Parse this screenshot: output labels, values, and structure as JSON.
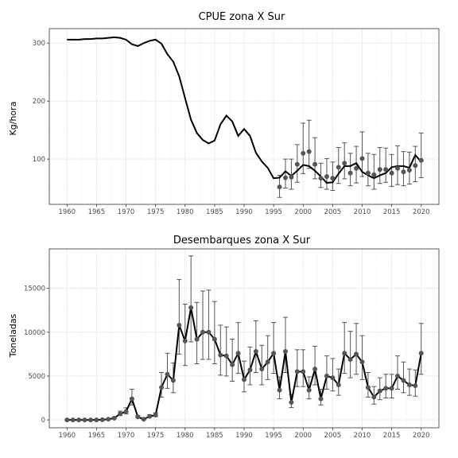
{
  "chart_data": [
    {
      "type": "line",
      "title": "CPUE zona X Sur",
      "xlabel": "",
      "ylabel": "Kg/hora",
      "xlim": [
        1957,
        2023
      ],
      "ylim": [
        22,
        325
      ],
      "x_ticks": [
        1960,
        1965,
        1970,
        1975,
        1980,
        1985,
        1990,
        1995,
        2000,
        2005,
        2010,
        2015,
        2020
      ],
      "y_ticks": [
        100,
        200,
        300
      ],
      "grid": true,
      "model_line": {
        "x": [
          1960,
          1961,
          1962,
          1963,
          1964,
          1965,
          1966,
          1967,
          1968,
          1969,
          1970,
          1971,
          1972,
          1973,
          1974,
          1975,
          1976,
          1977,
          1978,
          1979,
          1980,
          1981,
          1982,
          1983,
          1984,
          1985,
          1986,
          1987,
          1988,
          1989,
          1990,
          1991,
          1992,
          1993,
          1994,
          1995,
          1996,
          1997,
          1998,
          1999,
          2000,
          2001,
          2002,
          2003,
          2004,
          2005,
          2006,
          2007,
          2008,
          2009,
          2010,
          2011,
          2012,
          2013,
          2014,
          2015,
          2016,
          2017,
          2018,
          2019,
          2020
        ],
        "y": [
          306,
          306,
          306,
          307,
          307,
          308,
          308,
          309,
          310,
          309,
          306,
          298,
          295,
          300,
          304,
          306,
          299,
          281,
          268,
          243,
          205,
          168,
          145,
          133,
          127,
          132,
          160,
          175,
          165,
          140,
          152,
          140,
          111,
          96,
          85,
          67,
          68,
          79,
          71,
          80,
          90,
          88,
          80,
          70,
          59,
          60,
          75,
          88,
          88,
          93,
          78,
          72,
          67,
          72,
          76,
          86,
          88,
          88,
          85,
          107,
          95
        ]
      },
      "observations": {
        "x": [
          1996,
          1997,
          1998,
          1999,
          2000,
          2001,
          2002,
          2003,
          2004,
          2005,
          2006,
          2007,
          2008,
          2009,
          2010,
          2011,
          2012,
          2013,
          2014,
          2015,
          2016,
          2017,
          2018,
          2019,
          2020
        ],
        "y": [
          52,
          68,
          69,
          91,
          110,
          113,
          91,
          67,
          70,
          67,
          86,
          93,
          76,
          84,
          101,
          76,
          73,
          82,
          82,
          76,
          84,
          78,
          81,
          89,
          98
        ],
        "lower": [
          34,
          50,
          48,
          60,
          75,
          84,
          66,
          51,
          48,
          46,
          58,
          66,
          54,
          59,
          70,
          54,
          48,
          58,
          60,
          53,
          56,
          54,
          57,
          61,
          68
        ],
        "upper": [
          72,
          100,
          100,
          125,
          162,
          167,
          137,
          93,
          101,
          95,
          120,
          128,
          110,
          122,
          147,
          110,
          108,
          120,
          119,
          108,
          123,
          113,
          112,
          122,
          145
        ]
      }
    },
    {
      "type": "line",
      "title": "Desembarques zona X Sur",
      "xlabel": "",
      "ylabel": "Toneladas",
      "xlim": [
        1957,
        2023
      ],
      "ylim": [
        -900,
        19500
      ],
      "x_ticks": [
        1960,
        1965,
        1970,
        1975,
        1980,
        1985,
        1990,
        1995,
        2000,
        2005,
        2010,
        2015,
        2020
      ],
      "y_ticks": [
        0,
        5000,
        10000,
        15000
      ],
      "grid": true,
      "model_line": {
        "x": [
          1960,
          1961,
          1962,
          1963,
          1964,
          1965,
          1966,
          1967,
          1968,
          1969,
          1970,
          1971,
          1972,
          1973,
          1974,
          1975,
          1976,
          1977,
          1978,
          1979,
          1980,
          1981,
          1982,
          1983,
          1984,
          1985,
          1986,
          1987,
          1988,
          1989,
          1990,
          1991,
          1992,
          1993,
          1994,
          1995,
          1996,
          1997,
          1998,
          1999,
          2000,
          2001,
          2002,
          2003,
          2004,
          2005,
          2006,
          2007,
          2008,
          2009,
          2010,
          2011,
          2012,
          2013,
          2014,
          2015,
          2016,
          2017,
          2018,
          2019,
          2020
        ],
        "y": [
          0,
          0,
          0,
          0,
          0,
          0,
          20,
          80,
          200,
          700,
          950,
          2400,
          350,
          80,
          400,
          550,
          3700,
          5200,
          4500,
          10800,
          9000,
          12800,
          9200,
          10000,
          10000,
          9200,
          7400,
          7300,
          6300,
          7600,
          4600,
          5700,
          7800,
          5800,
          6600,
          7600,
          3400,
          7800,
          2000,
          5500,
          5500,
          3400,
          5800,
          2400,
          5000,
          4800,
          4000,
          7600,
          6900,
          7500,
          6600,
          3700,
          2600,
          3300,
          3600,
          3600,
          5000,
          4500,
          4000,
          3900,
          7600
        ]
      },
      "observations": {
        "x": [
          1960,
          1961,
          1962,
          1963,
          1964,
          1965,
          1966,
          1967,
          1968,
          1969,
          1970,
          1971,
          1972,
          1973,
          1974,
          1975,
          1976,
          1977,
          1978,
          1979,
          1980,
          1981,
          1982,
          1983,
          1984,
          1985,
          1986,
          1987,
          1988,
          1989,
          1990,
          1991,
          1992,
          1993,
          1994,
          1995,
          1996,
          1997,
          1998,
          1999,
          2000,
          2001,
          2002,
          2003,
          2004,
          2005,
          2006,
          2007,
          2008,
          2009,
          2010,
          2011,
          2012,
          2013,
          2014,
          2015,
          2016,
          2017,
          2018,
          2019,
          2020
        ],
        "y": [
          0,
          0,
          0,
          0,
          0,
          0,
          20,
          80,
          200,
          700,
          950,
          2400,
          350,
          80,
          400,
          550,
          3700,
          5200,
          4500,
          10800,
          9000,
          12800,
          9200,
          10000,
          10000,
          9200,
          7400,
          7300,
          6300,
          7600,
          4600,
          5700,
          7800,
          5800,
          6600,
          7600,
          3400,
          7800,
          2000,
          5500,
          5500,
          3400,
          5800,
          2400,
          5000,
          4800,
          4000,
          7600,
          6900,
          7500,
          6600,
          3700,
          2600,
          3300,
          3600,
          3600,
          5000,
          4500,
          4000,
          3900,
          7600
        ],
        "lower": [
          0,
          0,
          0,
          0,
          0,
          0,
          15,
          55,
          140,
          500,
          680,
          1700,
          250,
          55,
          280,
          390,
          2600,
          3600,
          3100,
          7500,
          6200,
          8900,
          6400,
          6900,
          6900,
          6400,
          5100,
          5000,
          4400,
          5300,
          3200,
          4000,
          5400,
          4000,
          4600,
          5300,
          2400,
          5400,
          1400,
          3800,
          3800,
          2400,
          4000,
          1700,
          3500,
          3300,
          2800,
          5300,
          4800,
          5200,
          4600,
          2600,
          1800,
          2300,
          2500,
          2500,
          3500,
          3100,
          2800,
          2700,
          5200
        ],
        "upper": [
          0,
          0,
          0,
          0,
          0,
          0,
          30,
          115,
          290,
          1000,
          1380,
          3500,
          500,
          115,
          580,
          800,
          5400,
          7600,
          6500,
          16000,
          13200,
          18700,
          13400,
          14700,
          14800,
          13500,
          10800,
          10600,
          9200,
          11100,
          6700,
          8300,
          11300,
          8500,
          9600,
          11100,
          4900,
          11700,
          2900,
          8000,
          8000,
          4900,
          8400,
          3500,
          7300,
          7000,
          5800,
          11100,
          10100,
          11000,
          9600,
          5400,
          3800,
          4800,
          5200,
          5200,
          7300,
          6600,
          5800,
          5700,
          11000
        ]
      }
    }
  ]
}
